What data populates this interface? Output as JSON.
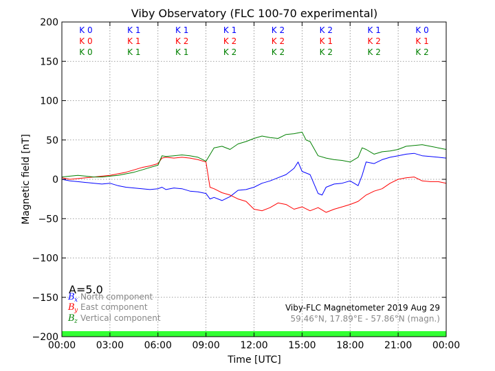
{
  "chart_data": {
    "type": "line",
    "title": "Viby Observatory (FLC 100-70 experimental)",
    "xlabel": "Time [UTC]",
    "ylabel": "Magnetic field [nT]",
    "xlim": [
      0,
      24
    ],
    "ylim": [
      -200,
      200
    ],
    "grid": true,
    "x_tick_values": [
      0,
      3,
      6,
      9,
      12,
      15,
      18,
      21,
      24
    ],
    "x_tick_labels": [
      "00:00",
      "03:00",
      "06:00",
      "09:00",
      "12:00",
      "15:00",
      "18:00",
      "21:00",
      "00:00"
    ],
    "y_tick_values": [
      -200,
      -150,
      -100,
      -50,
      0,
      50,
      100,
      150,
      200
    ],
    "y_tick_labels": [
      "−200",
      "−150",
      "−100",
      "−50",
      "0",
      "50",
      "100",
      "150",
      "200"
    ],
    "series": [
      {
        "name": "North component",
        "symbol": "B",
        "subscript": "x",
        "color": "#0000ff",
        "x": [
          0,
          0.5,
          1,
          1.5,
          2,
          2.5,
          3,
          3.5,
          4,
          4.5,
          5,
          5.5,
          6,
          6.25,
          6.5,
          7,
          7.5,
          8,
          8.5,
          9,
          9.25,
          9.5,
          10,
          10.5,
          11,
          11.5,
          12,
          12.5,
          13,
          13.5,
          14,
          14.5,
          14.75,
          15,
          15.5,
          16,
          16.25,
          16.5,
          17,
          17.5,
          18,
          18.5,
          18.75,
          19,
          19.5,
          20,
          20.5,
          21,
          21.5,
          22,
          22.5,
          23,
          23.5,
          24
        ],
        "y": [
          0,
          -2,
          -3,
          -4,
          -5,
          -6,
          -5,
          -8,
          -10,
          -11,
          -12,
          -13,
          -12,
          -10,
          -13,
          -11,
          -12,
          -15,
          -16,
          -18,
          -25,
          -23,
          -27,
          -22,
          -14,
          -13,
          -10,
          -5,
          -2,
          2,
          6,
          14,
          22,
          10,
          6,
          -18,
          -20,
          -10,
          -6,
          -5,
          -2,
          -8,
          5,
          22,
          20,
          25,
          28,
          30,
          32,
          33,
          30,
          29,
          28,
          27
        ]
      },
      {
        "name": "East component",
        "symbol": "B",
        "subscript": "y",
        "color": "#ff0000",
        "x": [
          0,
          0.5,
          1,
          1.5,
          2,
          2.5,
          3,
          3.5,
          4,
          4.5,
          5,
          5.5,
          6,
          6.25,
          6.5,
          7,
          7.5,
          8,
          8.5,
          9,
          9.25,
          9.5,
          10,
          10.5,
          11,
          11.5,
          12,
          12.5,
          13,
          13.5,
          14,
          14.5,
          15,
          15.5,
          16,
          16.5,
          17,
          17.5,
          18,
          18.5,
          19,
          19.5,
          20,
          20.5,
          21,
          21.5,
          22,
          22.5,
          23,
          23.5,
          24
        ],
        "y": [
          2,
          0,
          1,
          2,
          3,
          4,
          5,
          7,
          9,
          12,
          15,
          17,
          20,
          27,
          28,
          27,
          28,
          27,
          25,
          22,
          -10,
          -12,
          -17,
          -20,
          -25,
          -28,
          -38,
          -40,
          -36,
          -30,
          -32,
          -38,
          -35,
          -40,
          -36,
          -42,
          -38,
          -35,
          -32,
          -28,
          -20,
          -15,
          -12,
          -5,
          0,
          2,
          3,
          -2,
          -3,
          -3,
          -5
        ]
      },
      {
        "name": "Vertical component",
        "symbol": "B",
        "subscript": "z",
        "color": "#008000",
        "x": [
          0,
          0.5,
          1,
          1.5,
          2,
          2.5,
          3,
          3.5,
          4,
          4.5,
          5,
          5.5,
          6,
          6.25,
          6.5,
          7,
          7.5,
          8,
          8.5,
          9,
          9.5,
          10,
          10.5,
          11,
          11.5,
          12,
          12.5,
          13,
          13.5,
          14,
          14.5,
          15,
          15.25,
          15.5,
          16,
          16.5,
          17,
          17.5,
          18,
          18.5,
          18.75,
          19,
          19.5,
          20,
          20.5,
          21,
          21.5,
          22,
          22.5,
          23,
          23.5,
          24
        ],
        "y": [
          3,
          4,
          5,
          4,
          3,
          3,
          4,
          5,
          7,
          9,
          12,
          15,
          18,
          30,
          29,
          30,
          31,
          30,
          28,
          23,
          40,
          42,
          38,
          45,
          48,
          52,
          55,
          53,
          52,
          57,
          58,
          60,
          50,
          48,
          30,
          27,
          25,
          24,
          22,
          28,
          40,
          38,
          32,
          35,
          36,
          38,
          42,
          43,
          44,
          42,
          40,
          38
        ]
      }
    ],
    "k_indices": {
      "x_hours": [
        1.5,
        4.5,
        7.5,
        10.5,
        13.5,
        16.5,
        19.5,
        22.5
      ],
      "rows": [
        {
          "color": "#0000ff",
          "values": [
            "K 0",
            "K 1",
            "K 1",
            "K 1",
            "K 2",
            "K 2",
            "K 1",
            "K 0"
          ]
        },
        {
          "color": "#ff0000",
          "values": [
            "K 0",
            "K 1",
            "K 2",
            "K 2",
            "K 2",
            "K 1",
            "K 2",
            "K 1"
          ]
        },
        {
          "color": "#008000",
          "values": [
            "K 0",
            "K 1",
            "K 1",
            "K 2",
            "K 2",
            "K 2",
            "K 2",
            "K 2"
          ]
        }
      ]
    },
    "activity_bar": {
      "color": "#33ff33",
      "y_range": [
        -200,
        -193
      ]
    }
  },
  "annotations": {
    "a_index": "A=5.0",
    "legend_symbol": "B",
    "instrument": "Viby-FLC Magnetometer 2019 Aug 29",
    "location": "59.46°N, 17.89°E - 57.86°N (magn.)"
  }
}
